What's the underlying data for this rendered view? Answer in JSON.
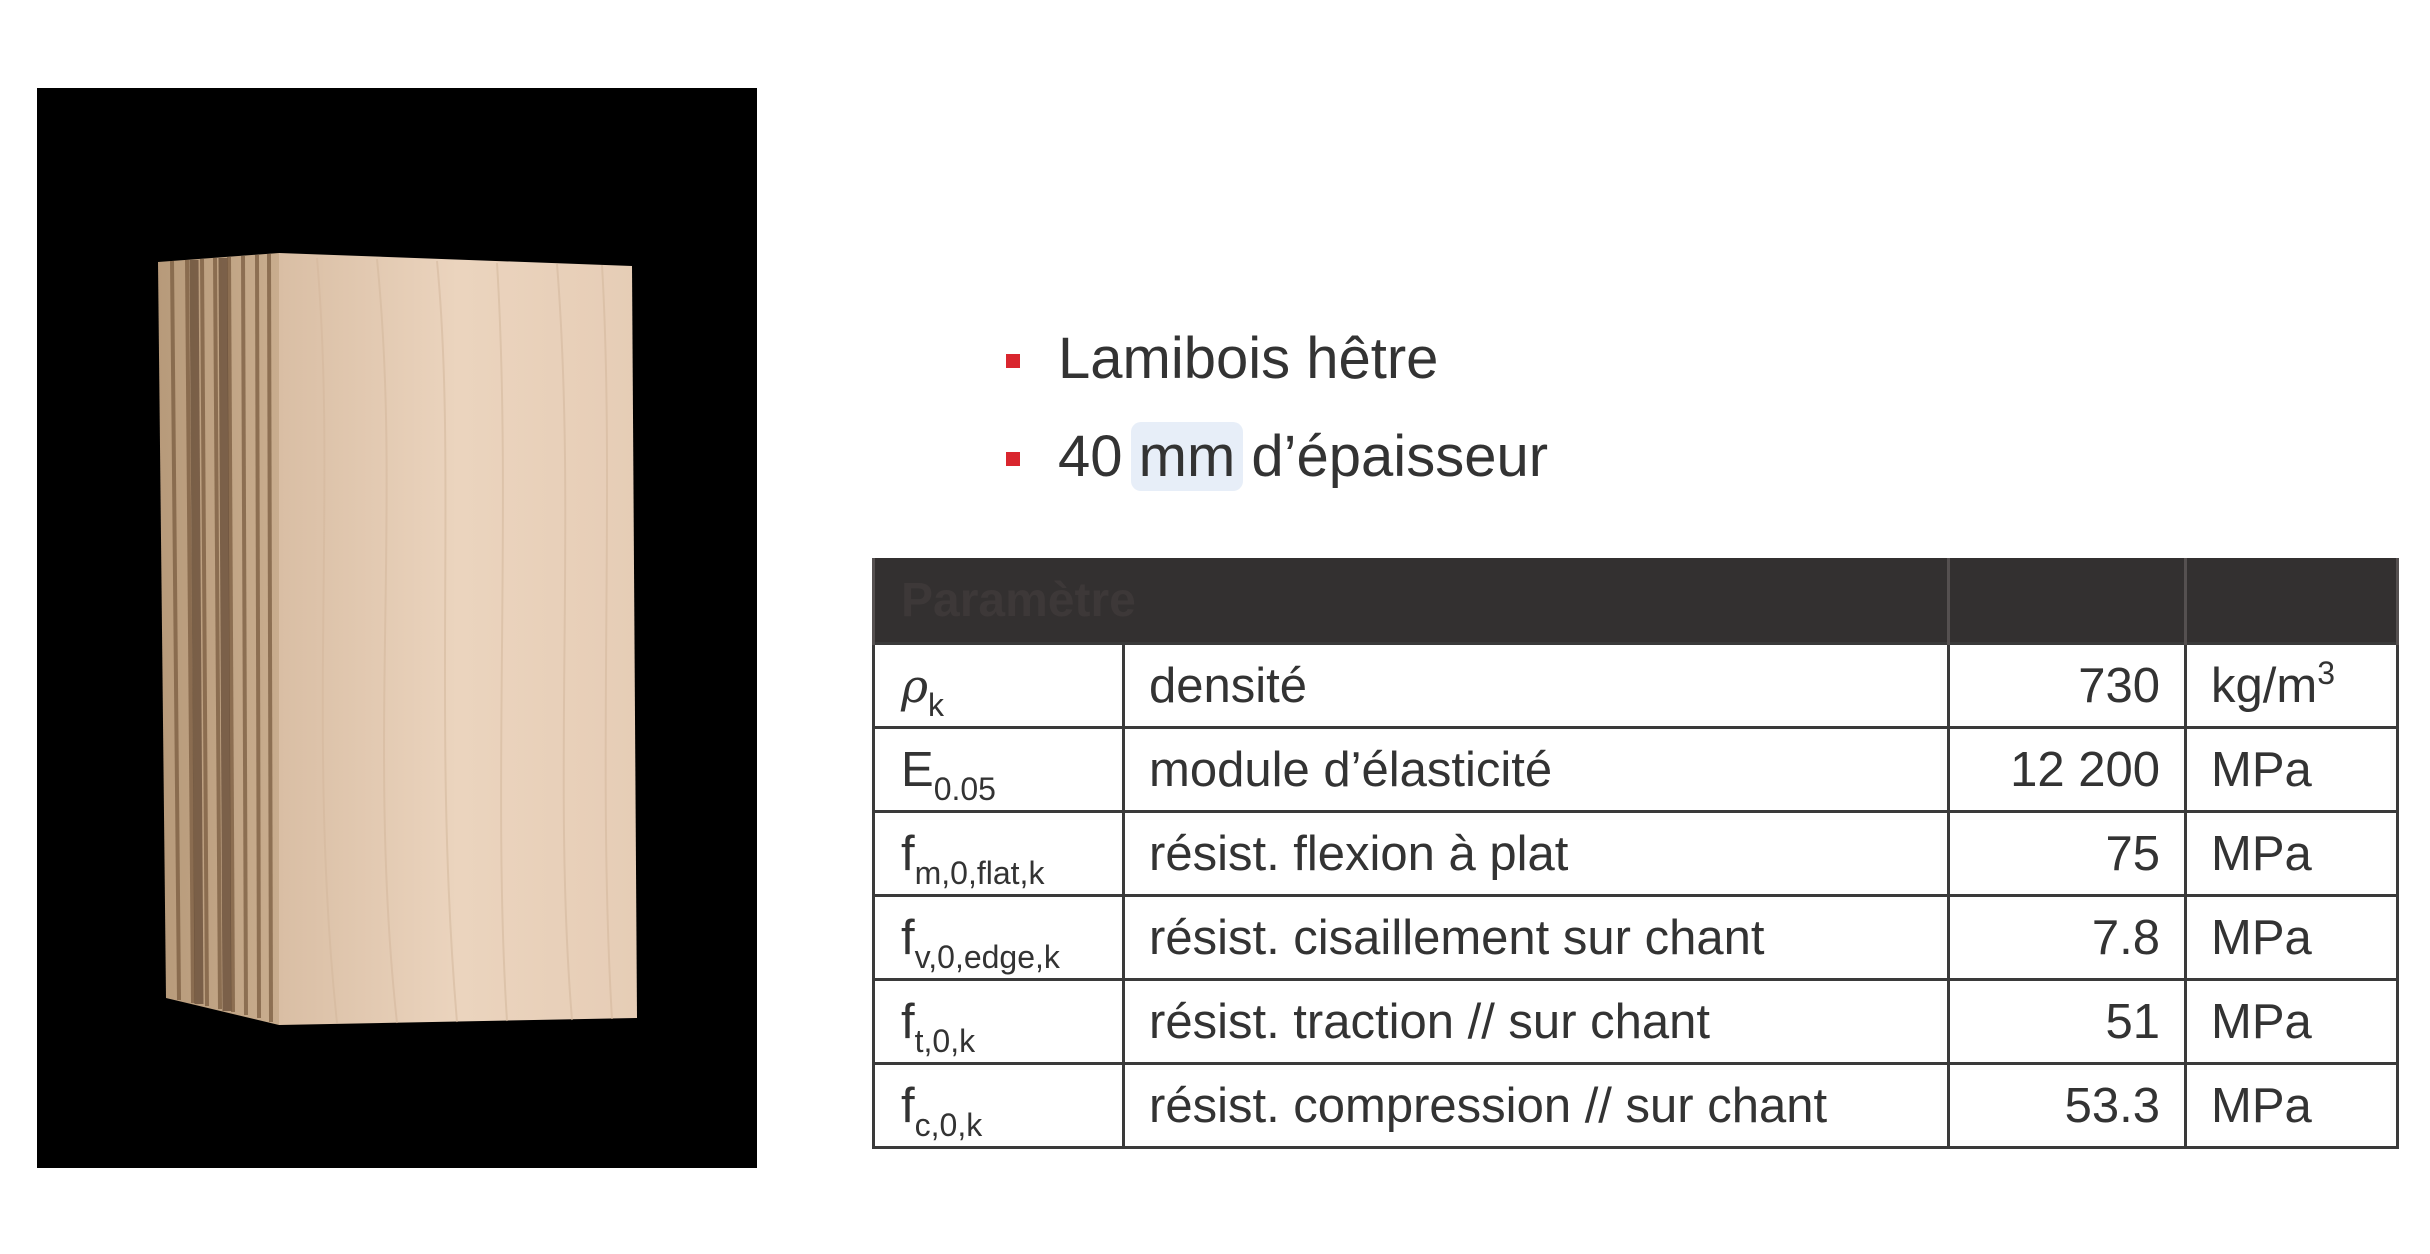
{
  "bullets": [
    {
      "prefix": "Lamibois hêtre",
      "highlight": "",
      "suffix": ""
    },
    {
      "prefix": "40 ",
      "highlight": "mm",
      "suffix": " d’épaisseur"
    }
  ],
  "table": {
    "headers": [
      "Paramètre",
      "",
      "",
      ""
    ],
    "rows": [
      {
        "symbol": "ρ",
        "sub": "k",
        "description": "densité",
        "value": "730",
        "unit": "kg/m",
        "unit_sup": "3"
      },
      {
        "symbol": "E",
        "sub": "0.05",
        "description": "module d’élasticité",
        "value": "12 200",
        "unit": "MPa",
        "unit_sup": ""
      },
      {
        "symbol": "f",
        "sub": "m,0,flat,k",
        "description": "résist. flexion à plat",
        "value": "75",
        "unit": "MPa",
        "unit_sup": ""
      },
      {
        "symbol": "f",
        "sub": "v,0,edge,k",
        "description": "résist. cisaillement sur chant",
        "value": "7.8",
        "unit": "MPa",
        "unit_sup": ""
      },
      {
        "symbol": "f",
        "sub": "t,0,k",
        "description": "résist. traction // sur chant",
        "value": "51",
        "unit": "MPa",
        "unit_sup": ""
      },
      {
        "symbol": "f",
        "sub": "c,0,k",
        "description": "résist. compression // sur chant",
        "value": "53.3",
        "unit": "MPa",
        "unit_sup": ""
      }
    ]
  },
  "colors": {
    "bullet_marker": "#d9262e",
    "header_bg": "#333030",
    "highlight_bg": "#e7eef8",
    "wood_face": "#ead3bd",
    "photo_bg": "#000000"
  },
  "photo": {
    "subject_icon": "lvl-beech-block-photo"
  }
}
